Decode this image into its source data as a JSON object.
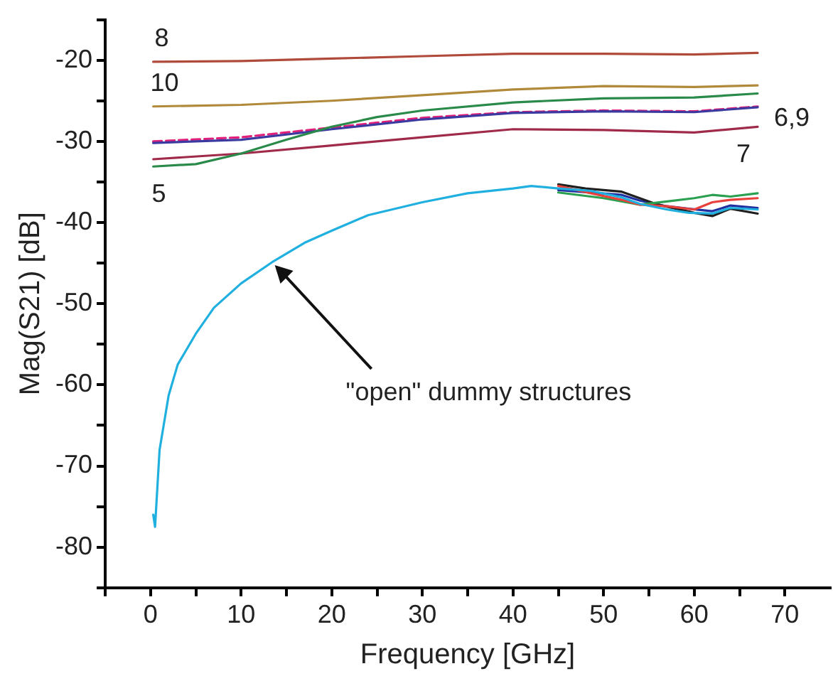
{
  "chart_data": {
    "type": "line",
    "xlabel": "Frequency [GHz]",
    "ylabel": "Mag(S21) [dB]",
    "xlim": [
      -5,
      75
    ],
    "ylim": [
      -85,
      -15
    ],
    "xticks": [
      {
        "value": -5,
        "label": null
      },
      0,
      {
        "value": 5,
        "label": null
      },
      10,
      {
        "value": 15,
        "label": null
      },
      20,
      {
        "value": 25,
        "label": null
      },
      30,
      {
        "value": 35,
        "label": null
      },
      40,
      {
        "value": 45,
        "label": null
      },
      50,
      {
        "value": 55,
        "label": null
      },
      60,
      {
        "value": 65,
        "label": null
      },
      70
    ],
    "yticks": [
      {
        "value": -85,
        "label": null
      },
      -80,
      {
        "value": -75,
        "label": null
      },
      -70,
      {
        "value": -65,
        "label": null
      },
      -60,
      {
        "value": -55,
        "label": null
      },
      -50,
      {
        "value": -45,
        "label": null
      },
      -40,
      {
        "value": -35,
        "label": null
      },
      -30,
      {
        "value": -25,
        "label": null
      },
      -20,
      {
        "value": -15,
        "label": null
      }
    ],
    "grid": false,
    "legend": false,
    "marker": "none",
    "series": [
      {
        "name": "8",
        "color": "#b04a3a",
        "x": [
          0.3,
          10,
          20,
          30,
          40,
          50,
          60,
          67
        ],
        "values": [
          -20.2,
          -20.1,
          -19.8,
          -19.5,
          -19.2,
          -19.2,
          -19.3,
          -19.1
        ]
      },
      {
        "name": "10",
        "color": "#b08a3a",
        "x": [
          0.3,
          10,
          20,
          30,
          40,
          50,
          60,
          67
        ],
        "values": [
          -25.7,
          -25.5,
          -25.0,
          -24.3,
          -23.6,
          -23.2,
          -23.3,
          -23.1
        ]
      },
      {
        "name": "5",
        "color": "#2a8a4a",
        "x": [
          0.3,
          5,
          10,
          15,
          20,
          25,
          30,
          40,
          50,
          60,
          67
        ],
        "values": [
          -33.1,
          -32.8,
          -31.5,
          -29.8,
          -28.2,
          -27.0,
          -26.2,
          -25.2,
          -24.7,
          -24.6,
          -24.1
        ]
      },
      {
        "name": "7",
        "color": "#a02a4a",
        "x": [
          0.3,
          10,
          20,
          30,
          40,
          50,
          60,
          67
        ],
        "values": [
          -32.2,
          -31.5,
          -30.5,
          -29.5,
          -28.5,
          -28.6,
          -28.9,
          -28.2
        ]
      },
      {
        "name": "6,9",
        "color": "#3a3aa0",
        "x": [
          0.3,
          10,
          20,
          30,
          40,
          50,
          60,
          67
        ],
        "values": [
          -30.2,
          -29.8,
          -28.5,
          -27.3,
          -26.5,
          -26.3,
          -26.4,
          -25.8
        ]
      },
      {
        "color": "#e0207a",
        "line_style": "dashed",
        "x": [
          0.3,
          10,
          20,
          30,
          40,
          50,
          60,
          67
        ],
        "values": [
          -30.0,
          -29.5,
          -28.3,
          -27.1,
          -26.4,
          -26.2,
          -26.3,
          -25.7
        ]
      },
      {
        "color": "#20b0e0",
        "x": [
          0.3,
          0.5,
          1,
          2,
          3,
          5,
          7,
          10,
          13.4,
          17,
          20,
          24,
          30,
          35,
          40,
          42,
          45,
          48.6,
          52,
          54,
          57,
          59.4,
          62,
          64,
          67
        ],
        "values": [
          -76,
          -77.5,
          -68,
          -61.3,
          -57.5,
          -53.7,
          -50.5,
          -47.5,
          -44.9,
          -42.5,
          -41,
          -39.1,
          -37.5,
          -36.4,
          -35.8,
          -35.5,
          -35.8,
          -36.1,
          -36.9,
          -37.7,
          -38.4,
          -38.8,
          -38.9,
          -38.2,
          -38.4
        ]
      },
      {
        "color": "#e8403a",
        "x": [
          45,
          48.6,
          52,
          54,
          57,
          60,
          62,
          64,
          67
        ],
        "values": [
          -35.5,
          -36.4,
          -37.2,
          -37.8,
          -38.0,
          -38.4,
          -37.5,
          -37.2,
          -37.0
        ]
      },
      {
        "color": "#2aa050",
        "x": [
          45,
          50,
          54,
          57,
          60,
          62,
          64,
          67
        ],
        "values": [
          -36.3,
          -37.0,
          -37.8,
          -37.4,
          -37.0,
          -36.6,
          -36.8,
          -36.4
        ]
      },
      {
        "color": "#202020",
        "x": [
          45,
          48,
          52,
          56,
          60,
          62,
          64,
          67
        ],
        "values": [
          -35.3,
          -35.8,
          -36.2,
          -37.8,
          -38.8,
          -39.2,
          -38.3,
          -38.9
        ]
      },
      {
        "color": "#2030a0",
        "x": [
          45,
          48.6,
          52,
          54,
          57,
          59.4,
          62,
          64,
          67
        ],
        "values": [
          -36.0,
          -36.3,
          -36.6,
          -37.3,
          -38.0,
          -38.3,
          -38.6,
          -37.9,
          -38.2
        ]
      }
    ],
    "annotations": [
      {
        "text": "\"open\" dummy structures",
        "x": 13.4,
        "y": -44.9
      }
    ]
  }
}
